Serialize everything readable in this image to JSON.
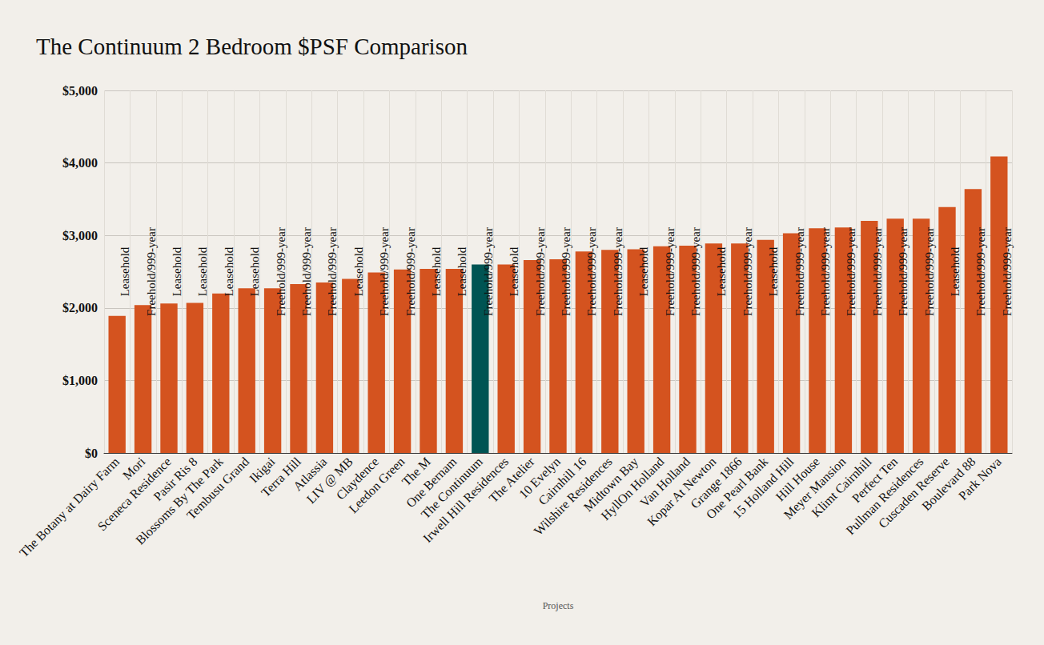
{
  "chart_data": {
    "type": "bar",
    "title": "The Continuum 2 Bedroom $PSF Comparison",
    "x_label": "Projects",
    "categories": [
      "The Botany at Dairy Farm",
      "Mori",
      "Sceneca Residence",
      "Pasir Ris 8",
      "Blossoms By The Park",
      "Tembusu Grand",
      "Ikigai",
      "Terra Hill",
      "Atlassia",
      "LIV @ MB",
      "Claydence",
      "Leedon Green",
      "The M",
      "One Bernam",
      "The Continuum",
      "Irwell Hill Residences",
      "The Atelier",
      "10 Evelyn",
      "Cairnhill 16",
      "Wilshire Residences",
      "Midtown Bay",
      "HyllOn Holland",
      "Van Holland",
      "Kopar At Newton",
      "Grange 1866",
      "One Pearl Bank",
      "15 Holland Hill",
      "Hill House",
      "Meyer Mansion",
      "Klimt Cairnhill",
      "Perfect Ten",
      "Pullman Residences",
      "Cuscaden Reserve",
      "Boulevard 88",
      "Park Nova"
    ],
    "values": [
      1890,
      2040,
      2060,
      2070,
      2200,
      2270,
      2270,
      2330,
      2350,
      2400,
      2490,
      2530,
      2540,
      2540,
      2600,
      2600,
      2660,
      2670,
      2780,
      2800,
      2810,
      2850,
      2860,
      2890,
      2890,
      2940,
      3030,
      3100,
      3110,
      3200,
      3230,
      3230,
      3390,
      3640,
      4090
    ],
    "annotations": [
      "Leasehold",
      "Freehold/999-year",
      "Leasehold",
      "Leasehold",
      "Leasehold",
      "Leasehold",
      "Freehold/999-year",
      "Freehold/999-year",
      "Freehold/999-year",
      "Leasehold",
      "Freehold/999-year",
      "Freehold/999-year",
      "Leasehold",
      "Leasehold",
      "Freehold/999-year",
      "Leasehold",
      "Freehold/999-year",
      "Freehold/999-year",
      "Freehold/999-year",
      "Freehold/999-year",
      "Leasehold",
      "Freehold/999-year",
      "Freehold/999-year",
      "Leasehold",
      "Freehold/999-year",
      "Leasehold",
      "Freehold/999-year",
      "Freehold/999-year",
      "Freehold/999-year",
      "Freehold/999-year",
      "Freehold/999-year",
      "Freehold/999-year",
      "Leasehold",
      "Freehold/999-year",
      "Freehold/999-year"
    ],
    "colors": [
      "#d4531f",
      "#d4531f",
      "#d4531f",
      "#d4531f",
      "#d4531f",
      "#d4531f",
      "#d4531f",
      "#d4531f",
      "#d4531f",
      "#d4531f",
      "#d4531f",
      "#d4531f",
      "#d4531f",
      "#d4531f",
      "#005453",
      "#d4531f",
      "#d4531f",
      "#d4531f",
      "#d4531f",
      "#d4531f",
      "#d4531f",
      "#d4531f",
      "#d4531f",
      "#d4531f",
      "#d4531f",
      "#d4531f",
      "#d4531f",
      "#d4531f",
      "#d4531f",
      "#d4531f",
      "#d4531f",
      "#d4531f",
      "#d4531f",
      "#d4531f",
      "#d4531f"
    ],
    "ylim": [
      0,
      5000
    ],
    "yticks": [
      {
        "value": 0,
        "label": "$0"
      },
      {
        "value": 1000,
        "label": "$1,000"
      },
      {
        "value": 2000,
        "label": "$2,000"
      },
      {
        "value": 3000,
        "label": "$3,000"
      },
      {
        "value": 4000,
        "label": "$4,000"
      },
      {
        "value": 5000,
        "label": "$5,000"
      }
    ],
    "grid": true
  }
}
